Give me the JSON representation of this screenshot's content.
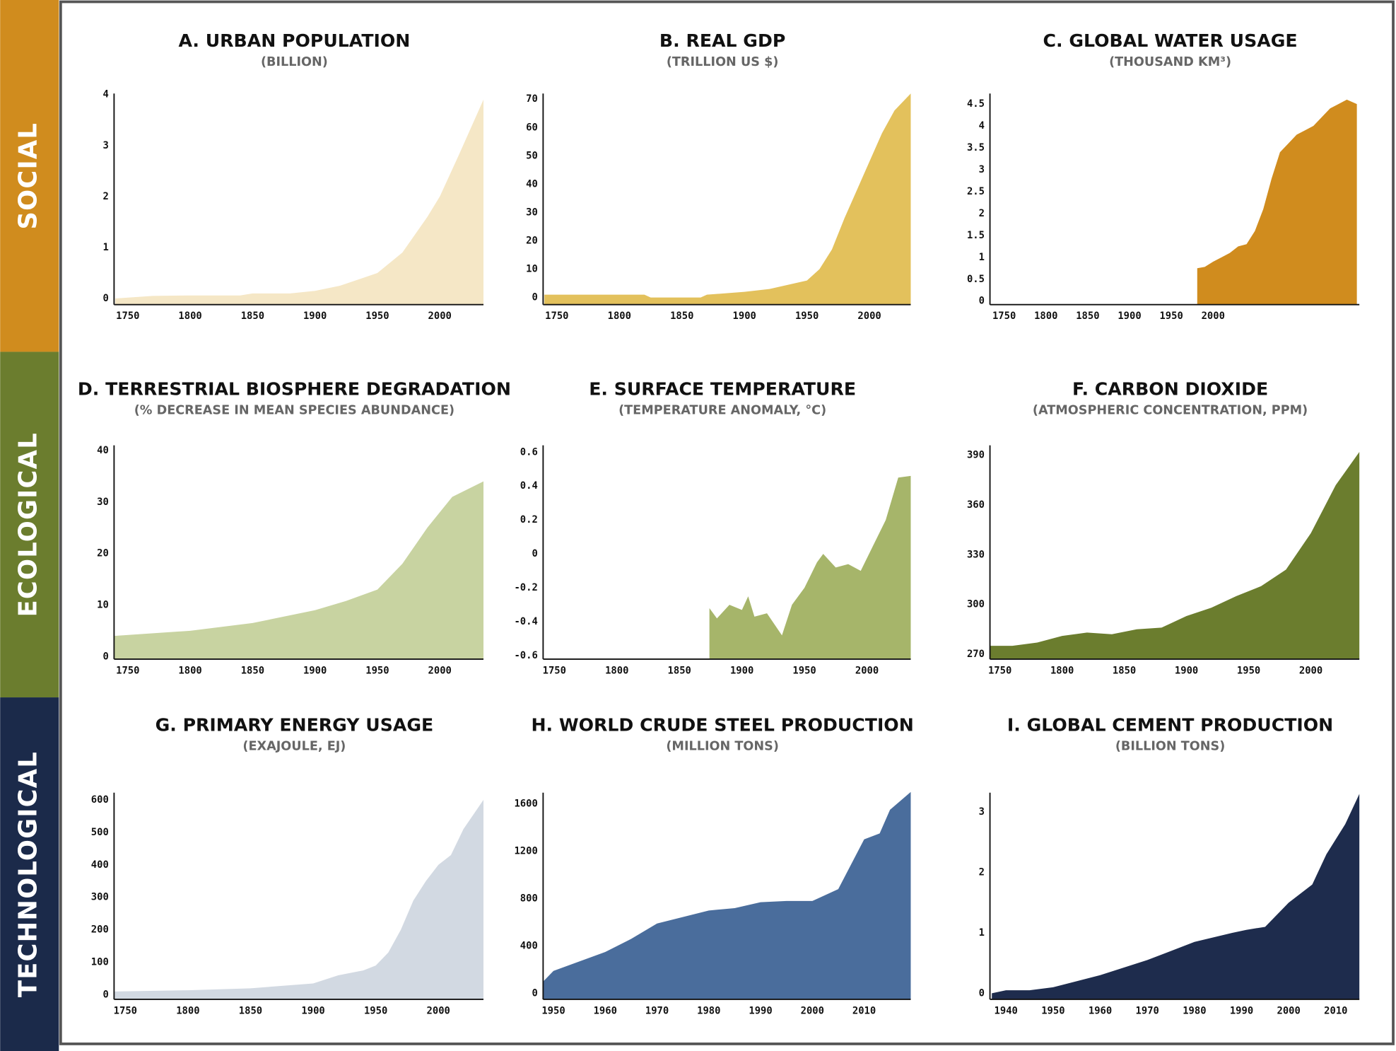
{
  "sections": [
    {
      "label": "SOCIAL",
      "color": "#d08c1e"
    },
    {
      "label": "ECOLOGICAL",
      "color": "#6b7d2e"
    },
    {
      "label": "TECHNOLOGICAL",
      "color": "#1b2a4a"
    }
  ],
  "chart_data": [
    {
      "type": "area",
      "title": "A. URBAN POPULATION",
      "subtitle": "(BILLION)",
      "color": "#f5e7c6",
      "x": [
        1740,
        1770,
        1800,
        1840,
        1850,
        1880,
        1900,
        1920,
        1950,
        1970,
        1990,
        2000,
        2015,
        2035
      ],
      "values": [
        0,
        0.05,
        0.06,
        0.06,
        0.1,
        0.1,
        0.15,
        0.25,
        0.5,
        0.9,
        1.6,
        2.0,
        2.8,
        3.9
      ],
      "xlim": [
        1739,
        2035
      ],
      "ylim": [
        -0.12,
        4.02
      ],
      "xticks": [
        1750,
        1800,
        1850,
        1900,
        1950,
        2000
      ],
      "yticks": [
        0,
        1,
        2,
        3,
        4
      ]
    },
    {
      "type": "area",
      "title": "B. REAL GDP",
      "subtitle": "(TRILLION US $)",
      "color": "#e3c15c",
      "x": [
        1740,
        1820,
        1825,
        1865,
        1870,
        1900,
        1920,
        1940,
        1950,
        1960,
        1970,
        1980,
        1990,
        2000,
        2010,
        2020,
        2033
      ],
      "values": [
        1,
        1,
        0,
        0,
        1,
        2,
        3,
        5,
        6,
        10,
        17,
        28,
        38,
        48,
        58,
        66,
        72
      ],
      "xlim": [
        1739,
        2033
      ],
      "ylim": [
        -2.5,
        72
      ],
      "xticks": [
        1750,
        1800,
        1850,
        1900,
        1950,
        2000
      ],
      "yticks": [
        0,
        10,
        20,
        30,
        40,
        50,
        60,
        70
      ]
    },
    {
      "type": "area",
      "title": "C. GLOBAL WATER USAGE",
      "subtitle": "(THOUSAND KM³)",
      "color": "#d08c1e",
      "x": [
        1981,
        1990,
        2000,
        2010,
        2020,
        2030,
        2040,
        2050,
        2060,
        2070,
        2080,
        2090,
        2100,
        2110,
        2120,
        2130,
        2140,
        2150,
        2160,
        2172
      ],
      "values": [
        0.75,
        0.78,
        0.9,
        1.0,
        1.1,
        1.25,
        1.3,
        1.6,
        2.1,
        2.8,
        3.4,
        3.6,
        3.8,
        3.9,
        4.0,
        4.2,
        4.4,
        4.5,
        4.6,
        4.5
      ],
      "xlim": [
        1733,
        2175
      ],
      "ylim": [
        -0.08,
        4.74
      ],
      "xticks": [
        1750,
        1800,
        1850,
        1900,
        1950,
        2000
      ],
      "yticks": [
        0,
        0.5,
        1,
        1.5,
        2,
        2.5,
        3,
        3.5,
        4,
        4.5
      ]
    },
    {
      "type": "area",
      "title": "D. TERRESTRIAL BIOSPHERE DEGRADATION",
      "subtitle": "(% DECREASE IN MEAN SPECIES ABUNDANCE)",
      "color": "#c8d3a1",
      "x": [
        1739,
        1800,
        1850,
        1900,
        1925,
        1950,
        1970,
        1990,
        2010,
        2035
      ],
      "values": [
        4,
        5,
        6.5,
        9,
        10.8,
        13,
        18,
        25,
        31,
        34
      ],
      "xlim": [
        1739,
        2035
      ],
      "ylim": [
        -0.5,
        41
      ],
      "xticks": [
        1750,
        1800,
        1850,
        1900,
        1950,
        2000
      ],
      "yticks": [
        0,
        10,
        20,
        30,
        40
      ]
    },
    {
      "type": "area",
      "title": "E. SURFACE TEMPERATURE",
      "subtitle": "(TEMPERATURE ANOMALY,  °C)",
      "color": "#a6b56a",
      "x": [
        1874,
        1880,
        1890,
        1900,
        1905,
        1910,
        1920,
        1932,
        1940,
        1950,
        1960,
        1965,
        1975,
        1985,
        1995,
        2005,
        2015,
        2025,
        2035
      ],
      "values": [
        -0.32,
        -0.38,
        -0.3,
        -0.33,
        -0.25,
        -0.37,
        -0.35,
        -0.48,
        -0.3,
        -0.2,
        -0.05,
        0,
        -0.08,
        -0.06,
        -0.1,
        0.05,
        0.2,
        0.45,
        0.46
      ],
      "xlim": [
        1741,
        2035
      ],
      "ylim": [
        -0.62,
        0.64
      ],
      "xticks": [
        1750,
        1800,
        1850,
        1900,
        1950,
        2000
      ],
      "yticks": [
        -0.6,
        -0.4,
        -0.2,
        0,
        0.2,
        0.4,
        0.6
      ]
    },
    {
      "type": "area",
      "title": "F. CARBON DIOXIDE",
      "subtitle": "(ATMOSPHERIC CONCENTRATION, PPM)",
      "color": "#6b7d2e",
      "x": [
        1742,
        1760,
        1780,
        1800,
        1820,
        1840,
        1860,
        1880,
        1900,
        1920,
        1940,
        1960,
        1980,
        2000,
        2020,
        2039
      ],
      "values": [
        275,
        275,
        277,
        281,
        283,
        282,
        285,
        286,
        293,
        298,
        305,
        311,
        321,
        343,
        372,
        392
      ],
      "xlim": [
        1742,
        2039
      ],
      "ylim": [
        267,
        396
      ],
      "xticks": [
        1750,
        1800,
        1850,
        1900,
        1950,
        2000
      ],
      "yticks": [
        270,
        300,
        330,
        360,
        390
      ]
    },
    {
      "type": "area",
      "title": "G. PRIMARY ENERGY USAGE",
      "subtitle": "(EXAJOULE, EJ)",
      "color": "#d2d9e2",
      "x": [
        1741,
        1800,
        1850,
        1900,
        1920,
        1940,
        1950,
        1960,
        1970,
        1980,
        1990,
        2000,
        2010,
        2020,
        2036
      ],
      "values": [
        10,
        14,
        20,
        35,
        60,
        75,
        90,
        130,
        200,
        290,
        350,
        400,
        430,
        510,
        600
      ],
      "xlim": [
        1741,
        2036
      ],
      "ylim": [
        -14,
        622
      ],
      "xticks": [
        1750,
        1800,
        1850,
        1900,
        1950,
        2000
      ],
      "yticks": [
        0,
        100,
        200,
        300,
        400,
        500,
        600
      ]
    },
    {
      "type": "area",
      "title": "H. WORLD CRUDE STEEL PRODUCTION",
      "subtitle": "(MILLION TONS)",
      "color": "#4a6d9c",
      "x": [
        1948,
        1950,
        1960,
        1965,
        1970,
        1980,
        1985,
        1990,
        1995,
        2000,
        2005,
        2010,
        2013,
        2015,
        2019
      ],
      "values": [
        100,
        190,
        350,
        460,
        590,
        700,
        720,
        770,
        780,
        780,
        880,
        1300,
        1350,
        1550,
        1700
      ],
      "xlim": [
        1948,
        2019
      ],
      "ylim": [
        -50,
        1694
      ],
      "xticks": [
        1950,
        1960,
        1970,
        1980,
        1990,
        2000,
        2010
      ],
      "yticks": [
        0,
        400,
        800,
        1200,
        1600
      ]
    },
    {
      "type": "area",
      "title": "I. GLOBAL CEMENT PRODUCTION",
      "subtitle": "(BILLION TONS)",
      "color": "#1e2c4d",
      "x": [
        1937,
        1940,
        1945,
        1950,
        1960,
        1970,
        1980,
        1988,
        1991,
        1995,
        2000,
        2005,
        2008,
        2012,
        2015
      ],
      "values": [
        0,
        0.05,
        0.05,
        0.1,
        0.3,
        0.55,
        0.85,
        1.0,
        1.05,
        1.1,
        1.5,
        1.8,
        2.3,
        2.8,
        3.3
      ],
      "xlim": [
        1936.6,
        2015
      ],
      "ylim": [
        -0.1,
        3.32
      ],
      "xticks": [
        1940,
        1950,
        1960,
        1970,
        1980,
        1990,
        2000,
        2010
      ],
      "yticks": [
        0,
        1,
        2,
        3
      ]
    }
  ]
}
